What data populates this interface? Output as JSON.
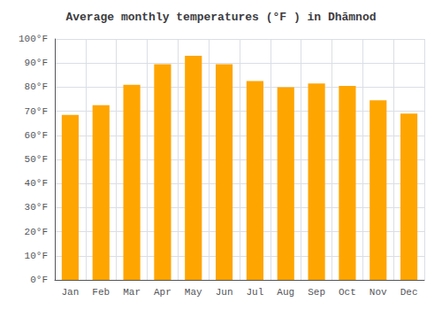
{
  "chart_data": {
    "type": "bar",
    "title": "Average monthly temperatures (°F ) in Dhāmnod",
    "categories": [
      "Jan",
      "Feb",
      "Mar",
      "Apr",
      "May",
      "Jun",
      "Jul",
      "Aug",
      "Sep",
      "Oct",
      "Nov",
      "Dec"
    ],
    "values": [
      68.5,
      72.5,
      81.0,
      89.5,
      93.0,
      89.5,
      82.5,
      80.0,
      81.5,
      80.5,
      74.5,
      69.0
    ],
    "color": "#FFA500",
    "ylim": [
      0,
      100
    ],
    "yticks": [
      {
        "value": 0,
        "label": "0°F"
      },
      {
        "value": 10,
        "label": "10°F"
      },
      {
        "value": 20,
        "label": "20°F"
      },
      {
        "value": 30,
        "label": "30°F"
      },
      {
        "value": 40,
        "label": "40°F"
      },
      {
        "value": 50,
        "label": "50°F"
      },
      {
        "value": 60,
        "label": "60°F"
      },
      {
        "value": 70,
        "label": "70°F"
      },
      {
        "value": 80,
        "label": "80°F"
      },
      {
        "value": 90,
        "label": "90°F"
      },
      {
        "value": 100,
        "label": "100°F"
      }
    ],
    "grid": true
  }
}
